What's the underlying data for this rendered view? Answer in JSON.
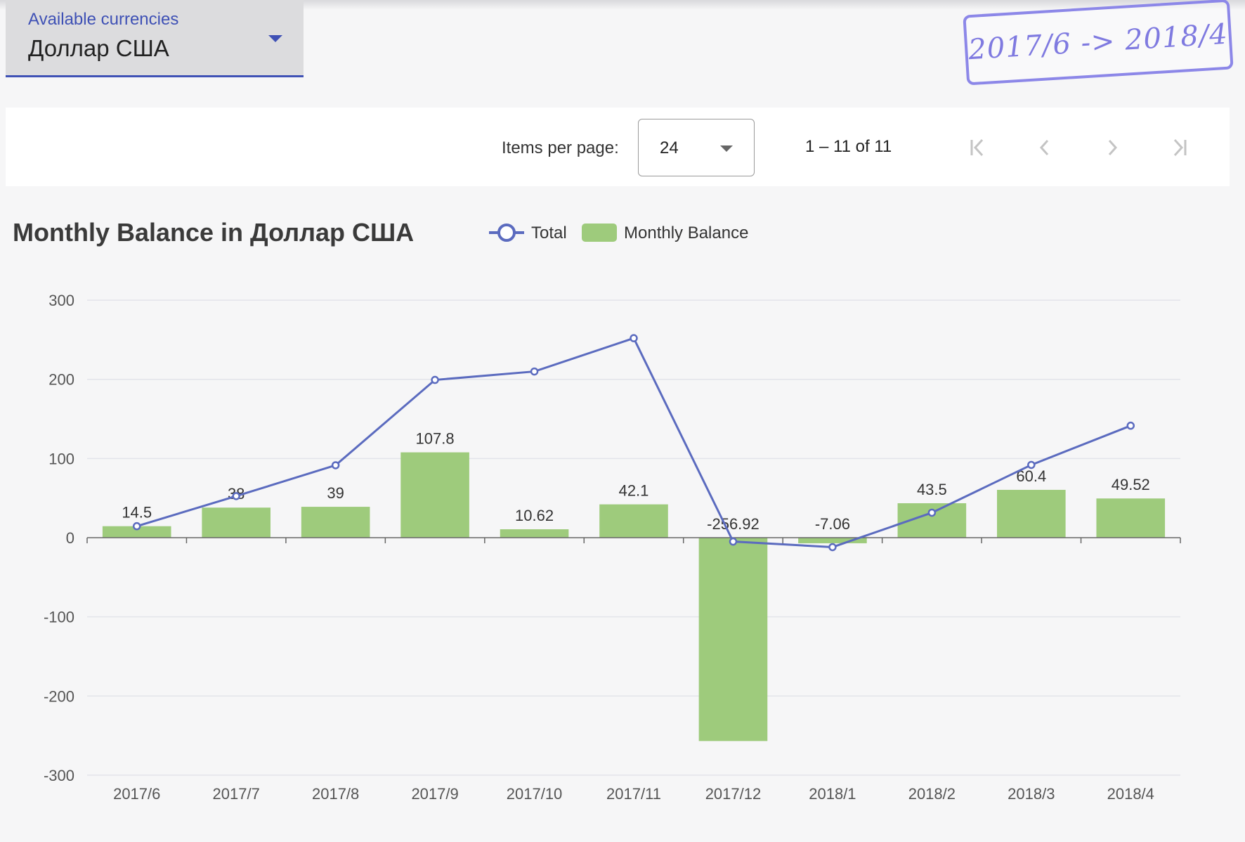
{
  "currency_select": {
    "label": "Available currencies",
    "value": "Доллар США"
  },
  "stamp": {
    "text": "2017/6 -> 2018/4"
  },
  "paginator": {
    "items_per_page_label": "Items per page:",
    "items_per_page_value": "24",
    "range_label": "1 – 11 of 11",
    "buttons": [
      "first-page",
      "previous-page",
      "next-page",
      "last-page"
    ]
  },
  "colors": {
    "accent": "#3f51b5",
    "line": "#5b6bbf",
    "bar": "#9ecb7c",
    "stamp": "#7f7ae0"
  },
  "chart_data": {
    "type": "bar",
    "title": "Monthly Balance in Доллар США",
    "legend": [
      "Total",
      "Monthly Balance"
    ],
    "legend_position": "top",
    "categories": [
      "2017/6",
      "2017/7",
      "2017/8",
      "2017/9",
      "2017/10",
      "2017/11",
      "2017/12",
      "2018/1",
      "2018/2",
      "2018/3",
      "2018/4"
    ],
    "series": [
      {
        "name": "Monthly Balance",
        "type": "bar",
        "values": [
          14.5,
          38,
          39,
          107.8,
          10.62,
          42.1,
          -256.92,
          -7.06,
          43.5,
          60.4,
          49.52
        ],
        "labels": [
          "14.5",
          "38",
          "39",
          "107.8",
          "10.62",
          "42.1",
          "-256.92",
          "-7.06",
          "43.5",
          "60.4",
          "49.52"
        ]
      },
      {
        "name": "Total",
        "type": "line",
        "values": [
          14.5,
          52.5,
          91.5,
          199.3,
          209.92,
          252.02,
          -4.9,
          -11.96,
          31.54,
          91.94,
          141.46
        ]
      }
    ],
    "yticks": [
      "300",
      "200",
      "100",
      "0",
      "-100",
      "-200",
      "-300"
    ],
    "ylim": [
      -300,
      300
    ],
    "grid": true
  }
}
